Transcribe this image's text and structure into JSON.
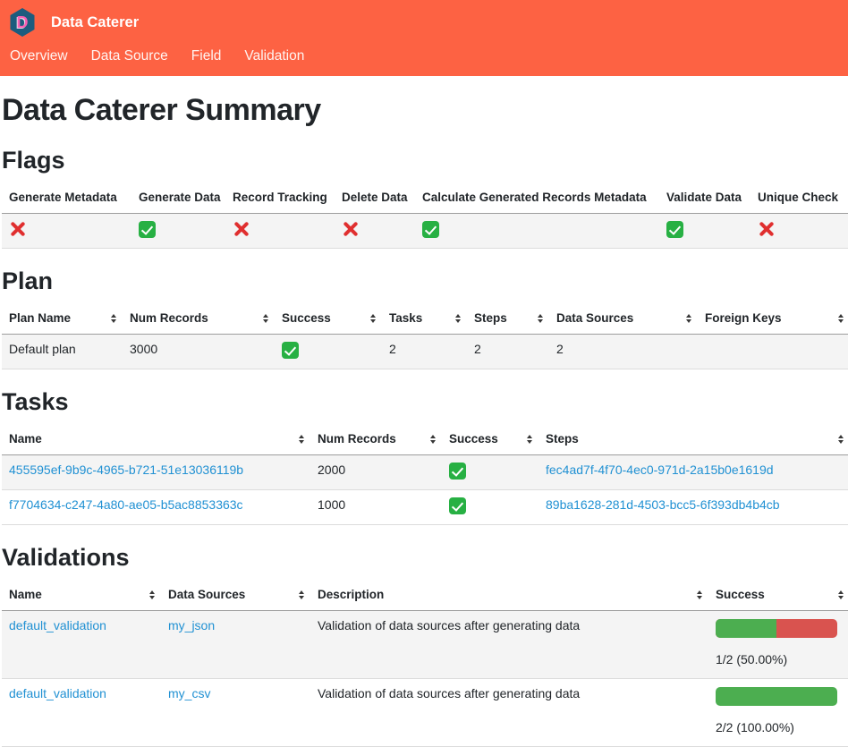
{
  "brand": {
    "name": "Data Caterer",
    "logo_letter": "D"
  },
  "nav": {
    "items": [
      {
        "label": "Overview"
      },
      {
        "label": "Data Source"
      },
      {
        "label": "Field"
      },
      {
        "label": "Validation"
      }
    ]
  },
  "page": {
    "title": "Data Caterer Summary"
  },
  "colors": {
    "header_bg": "#fd6243",
    "logo_hex": "#1d5c7e",
    "logo_letter_pink": "#f761b4",
    "link_blue": "#2191d3",
    "check_green": "#27b043",
    "cross_red": "#e02f2f",
    "bar_green": "#4cae50",
    "bar_red": "#d9534f",
    "stripe_gray": "#f4f4f4"
  },
  "icons": {
    "check": "check-in-green-box",
    "cross": "red-cross-mark",
    "sort": "up-down-triangles"
  },
  "flags": {
    "title": "Flags",
    "columns": [
      "Generate Metadata",
      "Generate Data",
      "Record Tracking",
      "Delete Data",
      "Calculate Generated Records Metadata",
      "Validate Data",
      "Unique Check"
    ],
    "values": [
      "cross",
      "check",
      "cross",
      "cross",
      "check",
      "check",
      "cross"
    ]
  },
  "plan": {
    "title": "Plan",
    "columns": [
      "Plan Name",
      "Num Records",
      "Success",
      "Tasks",
      "Steps",
      "Data Sources",
      "Foreign Keys"
    ],
    "rows": [
      {
        "plan_name": "Default plan",
        "num_records": "3000",
        "success": "check",
        "tasks": "2",
        "steps": "2",
        "data_sources": "2",
        "foreign_keys": ""
      }
    ]
  },
  "tasks": {
    "title": "Tasks",
    "columns": [
      "Name",
      "Num Records",
      "Success",
      "Steps"
    ],
    "rows": [
      {
        "name": "455595ef-9b9c-4965-b721-51e13036119b",
        "num_records": "2000",
        "success": "check",
        "steps": "fec4ad7f-4f70-4ec0-971d-2a15b0e1619d"
      },
      {
        "name": "f7704634-c247-4a80-ae05-b5ac8853363c",
        "num_records": "1000",
        "success": "check",
        "steps": "89ba1628-281d-4503-bcc5-6f393db4b4cb"
      }
    ]
  },
  "validations": {
    "title": "Validations",
    "columns": [
      "Name",
      "Data Sources",
      "Description",
      "Success"
    ],
    "rows": [
      {
        "name": "default_validation",
        "data_source": "my_json",
        "description": "Validation of data sources after generating data",
        "success_pct": 50,
        "success_label": "1/2 (50.00%)"
      },
      {
        "name": "default_validation",
        "data_source": "my_csv",
        "description": "Validation of data sources after generating data",
        "success_pct": 100,
        "success_label": "2/2 (100.00%)"
      }
    ]
  }
}
